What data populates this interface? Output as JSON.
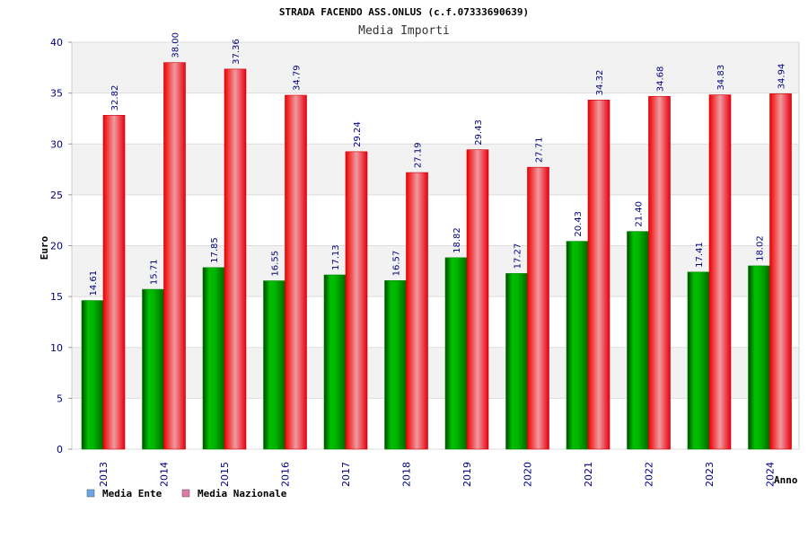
{
  "chart_data": {
    "type": "bar",
    "title": "STRADA FACENDO ASS.ONLUS (c.f.07333690639)",
    "subtitle": "Media Importi",
    "xlabel": "Anno",
    "ylabel": "Euro",
    "ylim": [
      0,
      40
    ],
    "yticks": [
      0,
      5,
      10,
      15,
      20,
      25,
      30,
      35,
      40
    ],
    "ytick_labels": [
      "0",
      "5",
      "10",
      "15",
      "20",
      "25",
      "30",
      "35",
      "40"
    ],
    "categories": [
      "2013",
      "2014",
      "2015",
      "2016",
      "2017",
      "2018",
      "2019",
      "2020",
      "2021",
      "2022",
      "2023",
      "2024"
    ],
    "series": [
      {
        "name": "Media Ente",
        "legend_color": "#6aa6e8",
        "bar_color": "#00a000",
        "values": [
          14.61,
          15.71,
          17.85,
          16.55,
          17.13,
          16.57,
          18.82,
          17.27,
          20.43,
          21.4,
          17.41,
          18.02
        ],
        "labels": [
          "14.61",
          "15.71",
          "17.85",
          "16.55",
          "17.13",
          "16.57",
          "18.82",
          "17.27",
          "20.43",
          "21.40",
          "17.41",
          "18.02"
        ]
      },
      {
        "name": "Media Nazionale",
        "legend_color": "#e07aa8",
        "bar_color": "#ee1122",
        "values": [
          32.82,
          38.0,
          37.36,
          34.79,
          29.24,
          27.19,
          29.43,
          27.71,
          34.32,
          34.68,
          34.83,
          34.94
        ],
        "labels": [
          "32.82",
          "38.00",
          "37.36",
          "34.79",
          "29.24",
          "27.19",
          "29.43",
          "27.71",
          "34.32",
          "34.68",
          "34.83",
          "34.94"
        ]
      }
    ],
    "grid": true,
    "legend_position": "bottom-left"
  }
}
